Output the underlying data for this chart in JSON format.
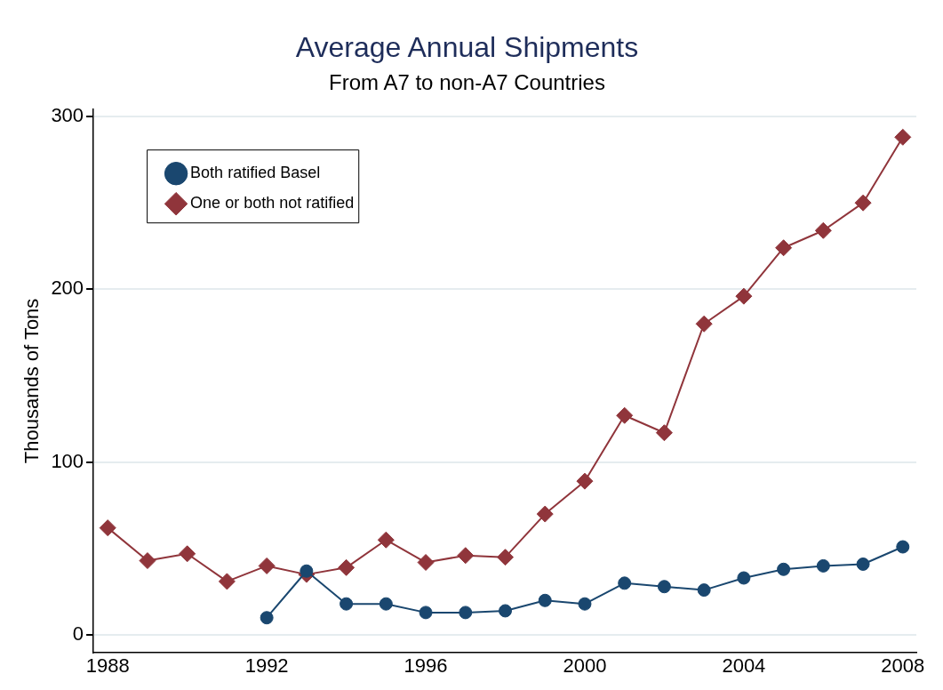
{
  "chart_data": {
    "type": "line",
    "title": "Average Annual Shipments",
    "subtitle": "From A7 to non-A7 Countries",
    "ylabel": "Thousands of Tons",
    "x": [
      1988,
      1989,
      1990,
      1991,
      1992,
      1993,
      1994,
      1995,
      1996,
      1997,
      1998,
      1999,
      2000,
      2001,
      2002,
      2003,
      2004,
      2005,
      2006,
      2007,
      2008
    ],
    "series": [
      {
        "name": "One or both not ratified",
        "color": "#90353b",
        "marker": "diamond",
        "values": [
          62,
          43,
          47,
          31,
          40,
          35,
          39,
          55,
          42,
          46,
          45,
          70,
          89,
          127,
          117,
          180,
          196,
          224,
          234,
          250,
          288
        ]
      },
      {
        "name": "Both ratified Basel",
        "color": "#1a476f",
        "marker": "circle",
        "values": [
          null,
          null,
          null,
          null,
          10,
          37,
          18,
          18,
          13,
          13,
          14,
          20,
          18,
          30,
          28,
          26,
          33,
          38,
          40,
          41,
          51
        ]
      }
    ],
    "xlim": [
      1987.64,
      2008.34
    ],
    "xticks": [
      1988,
      1992,
      1996,
      2000,
      2004,
      2008
    ],
    "ylim": [
      -10,
      304
    ],
    "yticks": [
      0,
      100,
      200,
      300
    ],
    "grid": "y",
    "legend": "top left",
    "line_style": "solid"
  }
}
